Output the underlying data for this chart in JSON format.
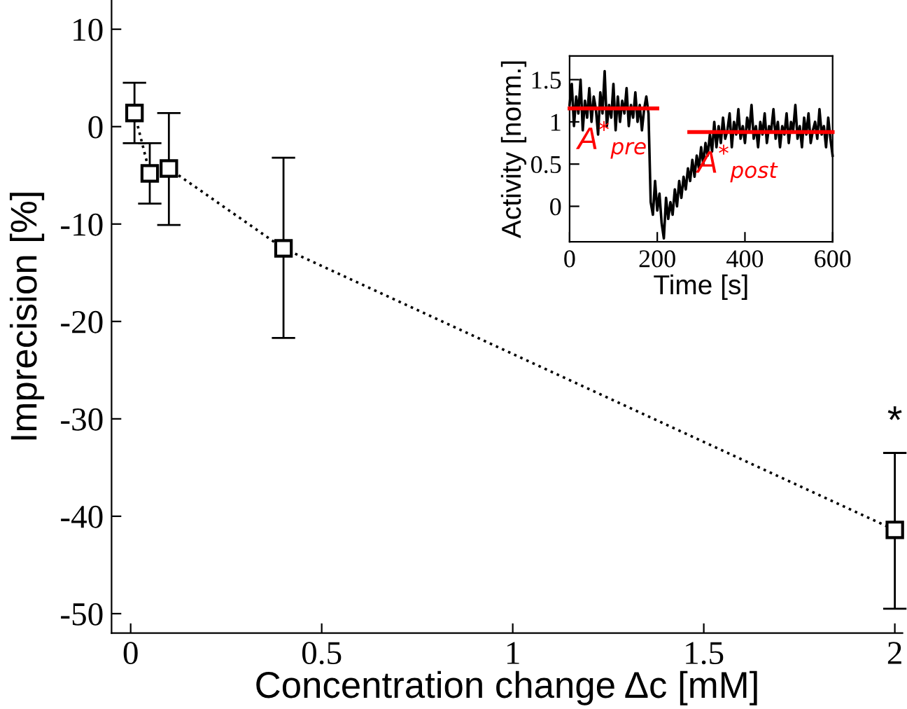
{
  "chart_data": [
    {
      "type": "line",
      "xlabel": "Concentration change Δc [mM]",
      "ylabel": "Imprecision [%]",
      "x": [
        0.01,
        0.05,
        0.1,
        0.4,
        2
      ],
      "series": [
        {
          "color": "#000000",
          "values": [
            1.4,
            -4.8,
            -4.3,
            -12.5,
            -41.4
          ],
          "errors": [
            [
              -1.7,
              4.5
            ],
            [
              -7.9,
              -1.7
            ],
            [
              -10.1,
              1.4
            ],
            [
              -21.7,
              -3.2
            ],
            [
              -49.5,
              -33.5
            ]
          ],
          "marker": "square",
          "line_style": "dotted"
        }
      ],
      "xlim": [
        -0.05,
        2.02
      ],
      "ylim": [
        -52,
        13
      ],
      "xticks": [
        0,
        0.5,
        1,
        1.5,
        2
      ],
      "yticks": [
        10,
        0,
        -10,
        -20,
        -30,
        -40,
        -50
      ],
      "annotations": [
        {
          "text": "*",
          "x": 2,
          "y": -33.5
        }
      ],
      "grid": false,
      "legend": false
    },
    {
      "type": "line",
      "xlabel": "Time [s]",
      "ylabel": "Activity [norm.]",
      "series": [
        {
          "color": "#000000",
          "x": [
            0,
            5,
            10,
            15,
            20,
            25,
            30,
            35,
            40,
            45,
            50,
            55,
            60,
            65,
            70,
            75,
            80,
            85,
            90,
            95,
            100,
            105,
            110,
            115,
            120,
            125,
            130,
            135,
            140,
            145,
            150,
            155,
            160,
            165,
            170,
            175,
            180,
            185,
            190,
            195,
            200,
            205,
            210,
            215,
            220,
            225,
            230,
            235,
            240,
            245,
            250,
            255,
            260,
            265,
            270,
            275,
            280,
            285,
            290,
            295,
            300,
            305,
            310,
            315,
            320,
            325,
            330,
            335,
            340,
            345,
            350,
            355,
            360,
            365,
            370,
            375,
            380,
            385,
            390,
            395,
            400,
            405,
            410,
            415,
            420,
            425,
            430,
            435,
            440,
            445,
            450,
            455,
            460,
            465,
            470,
            475,
            480,
            485,
            490,
            495,
            500,
            505,
            510,
            515,
            520,
            525,
            530,
            535,
            540,
            545,
            550,
            555,
            560,
            565,
            570,
            575,
            580,
            585,
            590,
            595,
            600
          ],
          "values": [
            1.2,
            1.45,
            0.95,
            1.3,
            1.1,
            1.5,
            0.9,
            1.25,
            1.05,
            1.4,
            1.0,
            1.3,
            1.15,
            0.85,
            1.35,
            1.1,
            1.6,
            0.95,
            1.2,
            1.05,
            1.45,
            0.9,
            1.3,
            1.0,
            1.25,
            1.1,
            1.4,
            0.95,
            1.2,
            1.05,
            1.35,
            1.0,
            1.2,
            0.9,
            1.15,
            1.3,
            1.1,
            0.05,
            -0.1,
            0.3,
            -0.05,
            0.15,
            -0.2,
            -0.38,
            0.1,
            -0.15,
            0.05,
            -0.1,
            0.2,
            0.0,
            0.3,
            0.1,
            0.35,
            0.2,
            0.45,
            0.3,
            0.55,
            0.35,
            0.6,
            0.45,
            0.7,
            0.5,
            0.75,
            0.6,
            0.85,
            0.65,
            1.0,
            0.7,
            0.95,
            0.75,
            1.05,
            0.8,
            0.9,
            1.1,
            0.7,
            1.0,
            0.85,
            1.15,
            0.8,
            0.95,
            0.75,
            1.05,
            0.9,
            1.2,
            0.8,
            0.95,
            0.7,
            1.0,
            0.85,
            1.1,
            0.75,
            0.95,
            0.9,
            1.15,
            0.8,
            1.0,
            0.7,
            0.95,
            0.85,
            1.1,
            0.75,
            1.0,
            0.9,
            1.2,
            0.8,
            0.95,
            0.7,
            1.05,
            0.85,
            1.1,
            0.75,
            0.9,
            1.0,
            0.8,
            1.15,
            0.85,
            0.95,
            0.7,
            1.05,
            0.8,
            0.6
          ]
        },
        {
          "name": "A$^{*}$$_{pre}$",
          "color": "#ff0000",
          "x": [
            0,
            200
          ],
          "values": [
            1.16,
            1.16
          ]
        },
        {
          "name": "A$^{*}$$_{post}$",
          "color": "#ff0000",
          "x": [
            273,
            600
          ],
          "values": [
            0.88,
            0.88
          ]
        }
      ],
      "xlim": [
        0,
        600
      ],
      "ylim": [
        -0.42,
        1.78
      ],
      "xticks": [
        0,
        200,
        400,
        600
      ],
      "yticks": [
        0,
        0.5,
        1,
        1.5
      ],
      "grid": false,
      "legend": false
    }
  ]
}
